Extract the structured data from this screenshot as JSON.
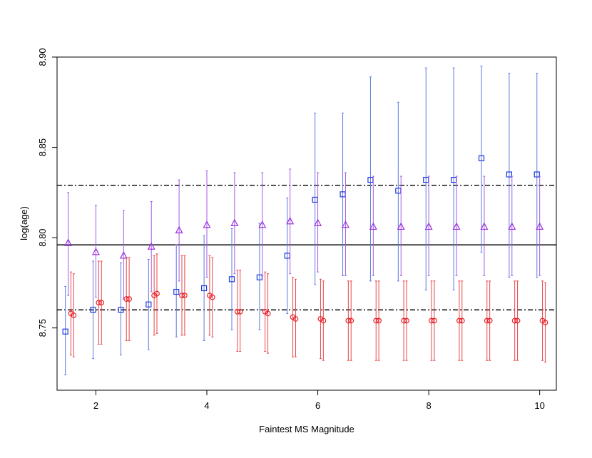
{
  "chart_data": {
    "type": "scatter",
    "title": "",
    "xlabel": "Faintest MS Magnitude",
    "ylabel": "log(age)",
    "xlim": [
      1.3,
      10.3
    ],
    "ylim": [
      8.7155,
      8.9
    ],
    "xticks": [
      2,
      4,
      6,
      8,
      10
    ],
    "yticks": [
      8.75,
      8.8,
      8.85,
      8.9
    ],
    "ytick_labels": [
      "8.75",
      "8.80",
      "8.85",
      "8.90"
    ],
    "grid": false,
    "legend": "none",
    "reference_lines": [
      {
        "y": 8.829,
        "style": "dotdash"
      },
      {
        "y": 8.796,
        "style": "solid"
      },
      {
        "y": 8.76,
        "style": "dotdash"
      }
    ],
    "series": [
      {
        "marker": "square",
        "color": "#1f3bdc",
        "bar_color": "#5b7be0",
        "points": [
          {
            "x": 1.45,
            "y": 8.748,
            "lo": 8.724,
            "hi": 8.773
          },
          {
            "x": 1.95,
            "y": 8.76,
            "lo": 8.733,
            "hi": 8.787
          },
          {
            "x": 2.45,
            "y": 8.76,
            "lo": 8.735,
            "hi": 8.786
          },
          {
            "x": 2.95,
            "y": 8.763,
            "lo": 8.738,
            "hi": 8.788
          },
          {
            "x": 3.45,
            "y": 8.77,
            "lo": 8.745,
            "hi": 8.796
          },
          {
            "x": 3.95,
            "y": 8.772,
            "lo": 8.743,
            "hi": 8.801
          },
          {
            "x": 4.45,
            "y": 8.777,
            "lo": 8.749,
            "hi": 8.805
          },
          {
            "x": 4.95,
            "y": 8.778,
            "lo": 8.749,
            "hi": 8.808
          },
          {
            "x": 5.45,
            "y": 8.79,
            "lo": 8.758,
            "hi": 8.822
          },
          {
            "x": 5.95,
            "y": 8.821,
            "lo": 8.774,
            "hi": 8.869
          },
          {
            "x": 6.45,
            "y": 8.824,
            "lo": 8.779,
            "hi": 8.869
          },
          {
            "x": 6.95,
            "y": 8.832,
            "lo": 8.776,
            "hi": 8.889
          },
          {
            "x": 7.45,
            "y": 8.826,
            "lo": 8.776,
            "hi": 8.875
          },
          {
            "x": 7.95,
            "y": 8.832,
            "lo": 8.771,
            "hi": 8.894
          },
          {
            "x": 8.45,
            "y": 8.832,
            "lo": 8.771,
            "hi": 8.894
          },
          {
            "x": 8.95,
            "y": 8.844,
            "lo": 8.792,
            "hi": 8.895
          },
          {
            "x": 9.45,
            "y": 8.835,
            "lo": 8.778,
            "hi": 8.891
          },
          {
            "x": 9.95,
            "y": 8.835,
            "lo": 8.778,
            "hi": 8.891
          }
        ]
      },
      {
        "marker": "triangle",
        "color": "#9b30e0",
        "bar_color": "#a45ae6",
        "points": [
          {
            "x": 1.5,
            "y": 8.797,
            "lo": 8.768,
            "hi": 8.825
          },
          {
            "x": 2.0,
            "y": 8.792,
            "lo": 8.767,
            "hi": 8.818
          },
          {
            "x": 2.5,
            "y": 8.79,
            "lo": 8.766,
            "hi": 8.815
          },
          {
            "x": 3.0,
            "y": 8.795,
            "lo": 8.77,
            "hi": 8.82
          },
          {
            "x": 3.5,
            "y": 8.804,
            "lo": 8.776,
            "hi": 8.832
          },
          {
            "x": 4.0,
            "y": 8.807,
            "lo": 8.778,
            "hi": 8.837
          },
          {
            "x": 4.5,
            "y": 8.808,
            "lo": 8.78,
            "hi": 8.836
          },
          {
            "x": 5.0,
            "y": 8.807,
            "lo": 8.779,
            "hi": 8.836
          },
          {
            "x": 5.5,
            "y": 8.809,
            "lo": 8.78,
            "hi": 8.838
          },
          {
            "x": 6.0,
            "y": 8.808,
            "lo": 8.781,
            "hi": 8.836
          },
          {
            "x": 6.5,
            "y": 8.807,
            "lo": 8.779,
            "hi": 8.836
          },
          {
            "x": 7.0,
            "y": 8.806,
            "lo": 8.779,
            "hi": 8.834
          },
          {
            "x": 7.5,
            "y": 8.806,
            "lo": 8.779,
            "hi": 8.834
          },
          {
            "x": 8.0,
            "y": 8.806,
            "lo": 8.779,
            "hi": 8.834
          },
          {
            "x": 8.5,
            "y": 8.806,
            "lo": 8.779,
            "hi": 8.834
          },
          {
            "x": 9.0,
            "y": 8.806,
            "lo": 8.779,
            "hi": 8.834
          },
          {
            "x": 9.5,
            "y": 8.806,
            "lo": 8.779,
            "hi": 8.834
          },
          {
            "x": 10.0,
            "y": 8.806,
            "lo": 8.779,
            "hi": 8.834
          }
        ]
      },
      {
        "marker": "circle",
        "color": "#e8232a",
        "bar_color": "#e8464a",
        "points": [
          {
            "x": 1.55,
            "y": 8.758,
            "lo": 8.735,
            "hi": 8.781
          },
          {
            "x": 1.6,
            "y": 8.757,
            "lo": 8.734,
            "hi": 8.78
          },
          {
            "x": 2.05,
            "y": 8.764,
            "lo": 8.741,
            "hi": 8.787
          },
          {
            "x": 2.1,
            "y": 8.764,
            "lo": 8.741,
            "hi": 8.787
          },
          {
            "x": 2.55,
            "y": 8.766,
            "lo": 8.743,
            "hi": 8.789
          },
          {
            "x": 2.6,
            "y": 8.766,
            "lo": 8.743,
            "hi": 8.789
          },
          {
            "x": 3.05,
            "y": 8.768,
            "lo": 8.746,
            "hi": 8.79
          },
          {
            "x": 3.1,
            "y": 8.769,
            "lo": 8.747,
            "hi": 8.791
          },
          {
            "x": 3.55,
            "y": 8.768,
            "lo": 8.746,
            "hi": 8.79
          },
          {
            "x": 3.6,
            "y": 8.768,
            "lo": 8.746,
            "hi": 8.79
          },
          {
            "x": 4.05,
            "y": 8.768,
            "lo": 8.746,
            "hi": 8.79
          },
          {
            "x": 4.1,
            "y": 8.767,
            "lo": 8.745,
            "hi": 8.789
          },
          {
            "x": 4.55,
            "y": 8.759,
            "lo": 8.737,
            "hi": 8.782
          },
          {
            "x": 4.6,
            "y": 8.759,
            "lo": 8.737,
            "hi": 8.782
          },
          {
            "x": 5.05,
            "y": 8.759,
            "lo": 8.737,
            "hi": 8.781
          },
          {
            "x": 5.1,
            "y": 8.758,
            "lo": 8.736,
            "hi": 8.78
          },
          {
            "x": 5.55,
            "y": 8.756,
            "lo": 8.734,
            "hi": 8.778
          },
          {
            "x": 5.6,
            "y": 8.755,
            "lo": 8.734,
            "hi": 8.777
          },
          {
            "x": 6.05,
            "y": 8.755,
            "lo": 8.733,
            "hi": 8.777
          },
          {
            "x": 6.1,
            "y": 8.754,
            "lo": 8.732,
            "hi": 8.776
          },
          {
            "x": 6.55,
            "y": 8.754,
            "lo": 8.732,
            "hi": 8.776
          },
          {
            "x": 6.6,
            "y": 8.754,
            "lo": 8.732,
            "hi": 8.776
          },
          {
            "x": 7.05,
            "y": 8.754,
            "lo": 8.732,
            "hi": 8.776
          },
          {
            "x": 7.1,
            "y": 8.754,
            "lo": 8.732,
            "hi": 8.776
          },
          {
            "x": 7.55,
            "y": 8.754,
            "lo": 8.732,
            "hi": 8.776
          },
          {
            "x": 7.6,
            "y": 8.754,
            "lo": 8.732,
            "hi": 8.776
          },
          {
            "x": 8.05,
            "y": 8.754,
            "lo": 8.732,
            "hi": 8.776
          },
          {
            "x": 8.1,
            "y": 8.754,
            "lo": 8.732,
            "hi": 8.776
          },
          {
            "x": 8.55,
            "y": 8.754,
            "lo": 8.732,
            "hi": 8.776
          },
          {
            "x": 8.6,
            "y": 8.754,
            "lo": 8.732,
            "hi": 8.776
          },
          {
            "x": 9.05,
            "y": 8.754,
            "lo": 8.732,
            "hi": 8.776
          },
          {
            "x": 9.1,
            "y": 8.754,
            "lo": 8.732,
            "hi": 8.776
          },
          {
            "x": 9.55,
            "y": 8.754,
            "lo": 8.732,
            "hi": 8.776
          },
          {
            "x": 9.6,
            "y": 8.754,
            "lo": 8.732,
            "hi": 8.776
          },
          {
            "x": 10.05,
            "y": 8.754,
            "lo": 8.732,
            "hi": 8.776
          },
          {
            "x": 10.1,
            "y": 8.753,
            "lo": 8.731,
            "hi": 8.775
          }
        ]
      }
    ]
  }
}
